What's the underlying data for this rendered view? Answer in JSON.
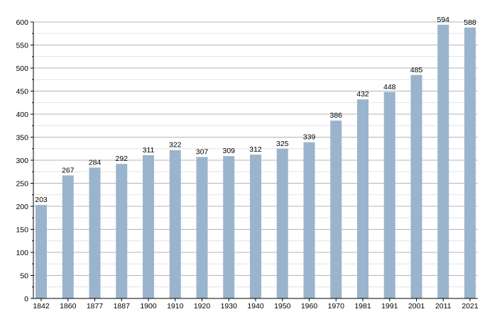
{
  "chart_data": {
    "type": "bar",
    "categories": [
      "1842",
      "1860",
      "1877",
      "1887",
      "1900",
      "1910",
      "1920",
      "1930",
      "1940",
      "1950",
      "1960",
      "1970",
      "1981",
      "1991",
      "2001",
      "2011",
      "2021"
    ],
    "values": [
      203,
      267,
      284,
      292,
      311,
      322,
      307,
      309,
      312,
      325,
      339,
      386,
      432,
      448,
      485,
      594,
      588
    ],
    "data_labels": [
      "203",
      "267",
      "284",
      "292",
      "311",
      "322",
      "307",
      "309",
      "312",
      "325",
      "339",
      "386",
      "432",
      "448",
      "485",
      "594",
      "588"
    ],
    "title": "",
    "xlabel": "",
    "ylabel": "",
    "ylim": [
      0,
      600
    ],
    "yticks": [
      0,
      50,
      100,
      150,
      200,
      250,
      300,
      350,
      400,
      450,
      500,
      550,
      600
    ],
    "ytick_labels": [
      "0",
      "50",
      "100",
      "150",
      "200",
      "250",
      "300",
      "350",
      "400",
      "450",
      "500",
      "550",
      "600"
    ],
    "grid": true,
    "legend": "none",
    "colors": {
      "bar": "#9ab4cd",
      "grid_major": "#b4b4b4",
      "grid_minor": "#e2e2e2",
      "axis": "#000000",
      "text": "#000000"
    }
  }
}
